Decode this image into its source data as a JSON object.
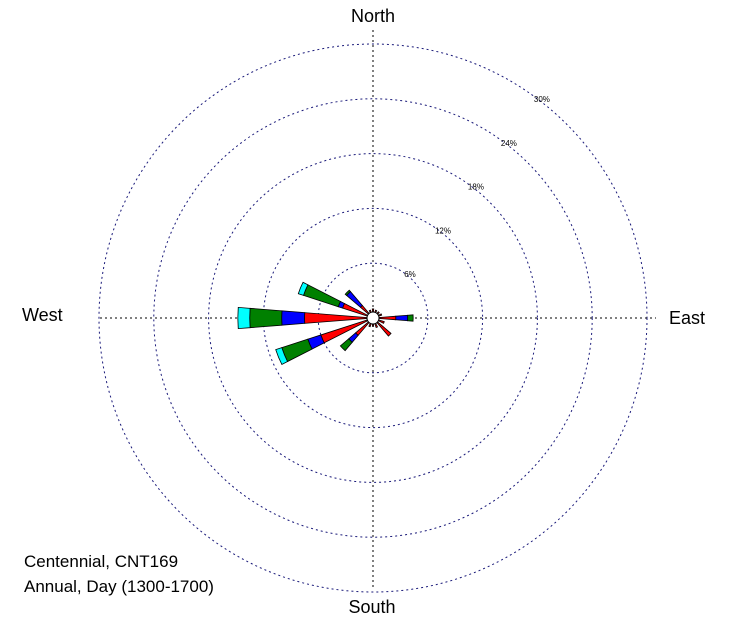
{
  "directions": {
    "north": "North",
    "south": "South",
    "east": "East",
    "west": "West"
  },
  "caption": {
    "line1": "Centennial, CNT169",
    "line2": "Annual, Day (1300-1700)"
  },
  "chart_data": {
    "type": "wind-rose",
    "rings": [
      6,
      12,
      18,
      24,
      30
    ],
    "ring_labels": [
      "6%",
      "12%",
      "18%",
      "24%",
      "30%"
    ],
    "axis_max": 30,
    "colors": {
      "class1": "#ff0000",
      "class2": "#0000ff",
      "class3": "#008000",
      "class4": "#00ffff",
      "calm": "#ffffff"
    },
    "calm_pct": 0.5,
    "petals": [
      {
        "direction": 270.0,
        "segments": [
          0.6,
          7.5,
          10.0,
          13.5,
          14.8
        ]
      },
      {
        "direction": 247.5,
        "segments": [
          0.6,
          6.0,
          7.5,
          10.5,
          11.2
        ]
      },
      {
        "direction": 292.5,
        "segments": [
          0.6,
          3.5,
          4.0,
          8.0,
          8.6
        ]
      },
      {
        "direction": 225.0,
        "segments": [
          0.6,
          2.5,
          3.5,
          4.7,
          4.7
        ]
      },
      {
        "direction": 315.0,
        "segments": [
          0.6,
          1.8,
          3.8,
          4.0,
          4.0
        ]
      },
      {
        "direction": 90.0,
        "segments": [
          0.6,
          2.5,
          3.8,
          4.4,
          4.4
        ]
      },
      {
        "direction": 135.0,
        "segments": [
          0.6,
          2.6,
          2.6,
          2.6,
          2.6
        ]
      },
      {
        "direction": 112.5,
        "segments": [
          0.6,
          1.3,
          1.3,
          1.3,
          1.3
        ]
      },
      {
        "direction": 67.5,
        "segments": [
          0.6,
          1.0,
          1.0,
          1.0,
          1.0
        ]
      },
      {
        "direction": 0.0,
        "segments": [
          0.6,
          1.0,
          1.0,
          1.0,
          1.0
        ]
      },
      {
        "direction": 157.5,
        "segments": [
          0.6,
          1.1,
          1.1,
          1.1,
          1.1
        ]
      },
      {
        "direction": 180.0,
        "segments": [
          0.6,
          0.9,
          0.9,
          0.9,
          0.9
        ]
      },
      {
        "direction": 202.5,
        "segments": [
          0.6,
          1.0,
          1.0,
          1.0,
          1.0
        ]
      },
      {
        "direction": 337.5,
        "segments": [
          0.6,
          0.9,
          0.9,
          0.9,
          0.9
        ]
      },
      {
        "direction": 22.5,
        "segments": [
          0.6,
          0.9,
          0.9,
          0.9,
          0.9
        ]
      },
      {
        "direction": 45.0,
        "segments": [
          0.6,
          0.9,
          0.9,
          0.9,
          0.9
        ]
      }
    ]
  }
}
